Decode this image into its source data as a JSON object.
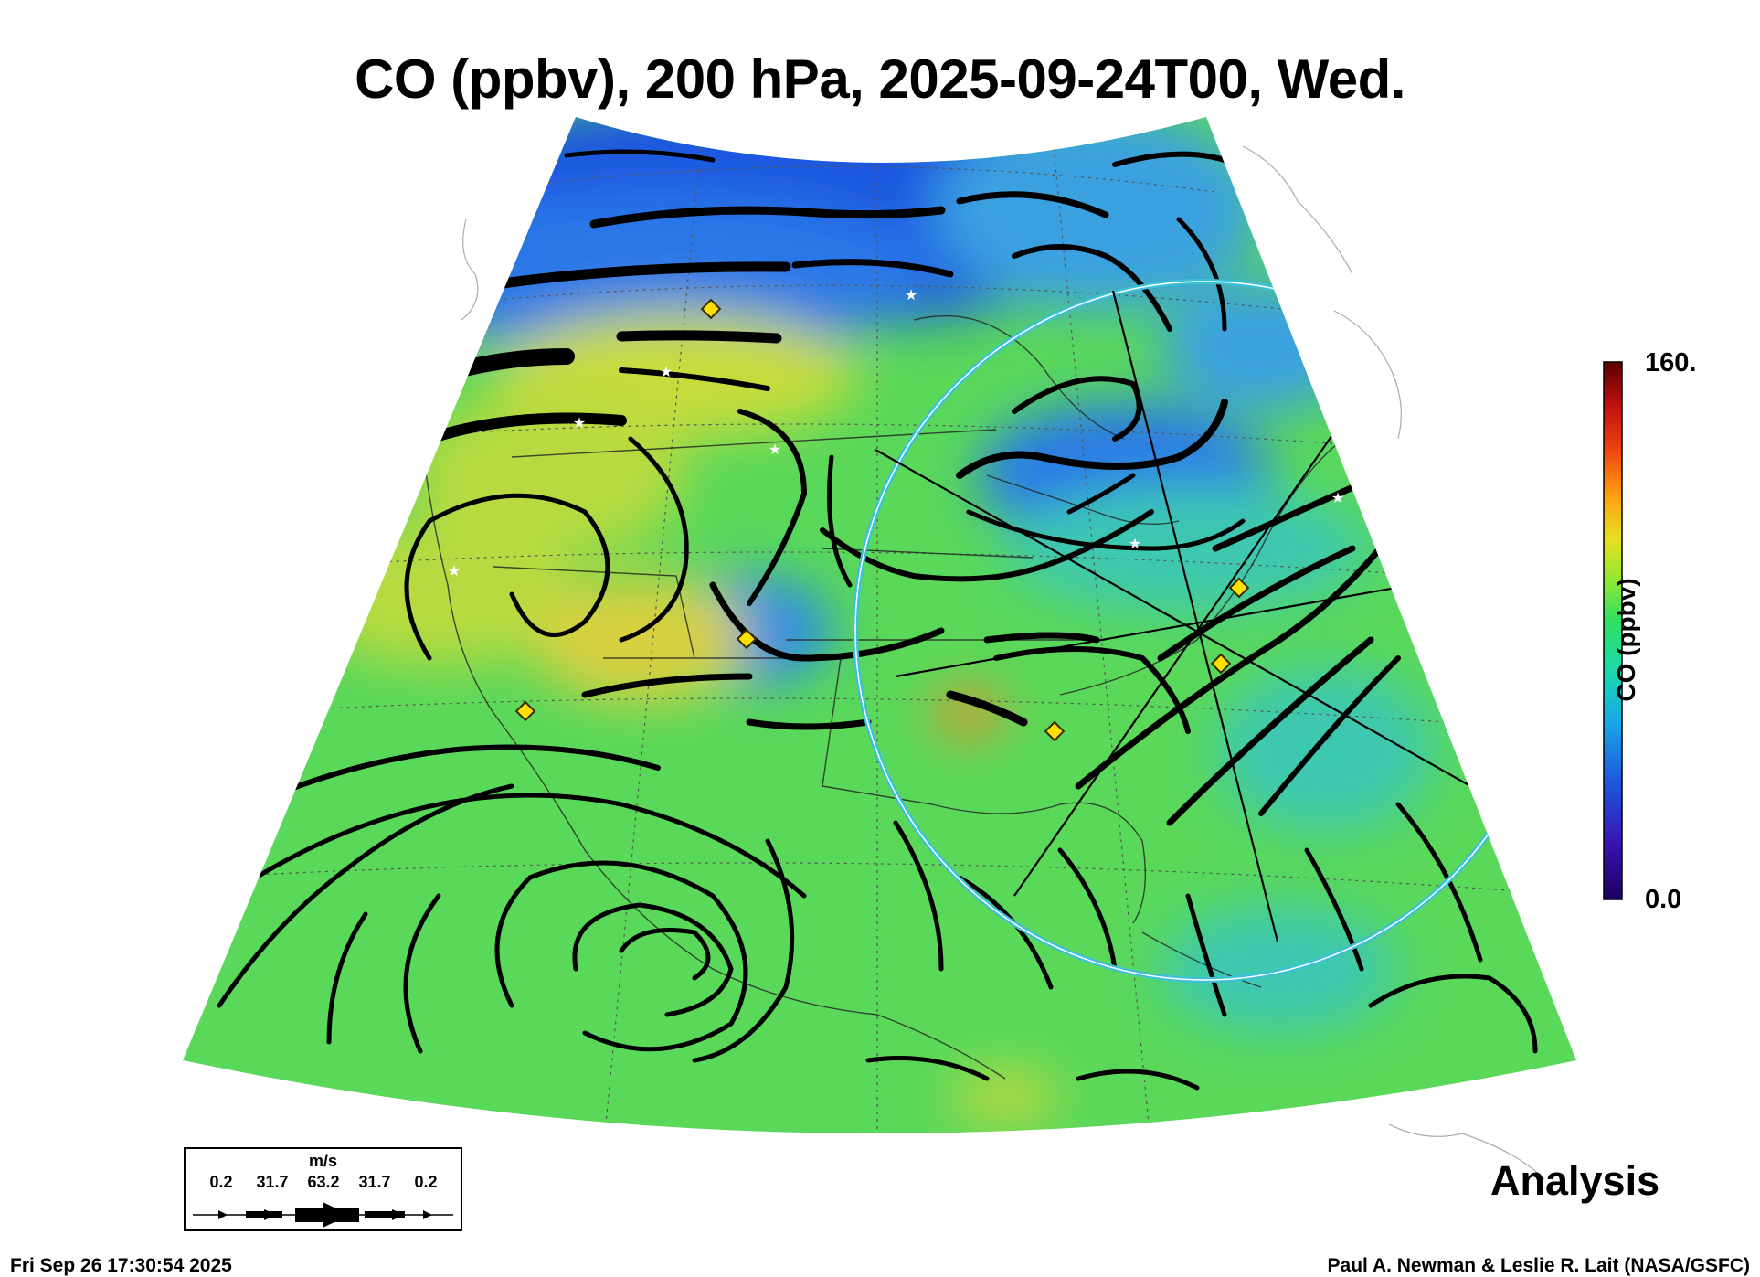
{
  "title": "CO (ppbv), 200 hPa, 2025-09-24T00, Wed.",
  "colorbar": {
    "label": "CO (ppbv)",
    "max_label": "160.",
    "min_label": "0.0",
    "min": 0.0,
    "max": 160,
    "colors": [
      "#1b0060",
      "#3a10b0",
      "#1e58e0",
      "#18a8e8",
      "#18d8b0",
      "#30e060",
      "#98e830",
      "#e8e020",
      "#ffa010",
      "#f04010",
      "#c01010",
      "#5a0000"
    ]
  },
  "wind_legend": {
    "unit": "m/s",
    "speeds": [
      "0.2",
      "31.7",
      "63.2",
      "31.7",
      "0.2"
    ]
  },
  "mode_label": "Analysis",
  "timestamp": "Fri Sep 26 17:30:54 2025",
  "credit": "Paul A. Newman & Leslie R. Lait (NASA/GSFC)",
  "map": {
    "projection": "conic",
    "field_colors": {
      "background": "#5ad85a",
      "low_co": "#2a78e8",
      "very_low_co": "#1e56e0",
      "medium_low": "#3cc8b0",
      "elevated": "#c8dc3a",
      "high": "#e89a30"
    },
    "range_ring_color": "#3cc0d8",
    "station_marker_color": "#ffe000",
    "streamline_color": "#000000"
  }
}
